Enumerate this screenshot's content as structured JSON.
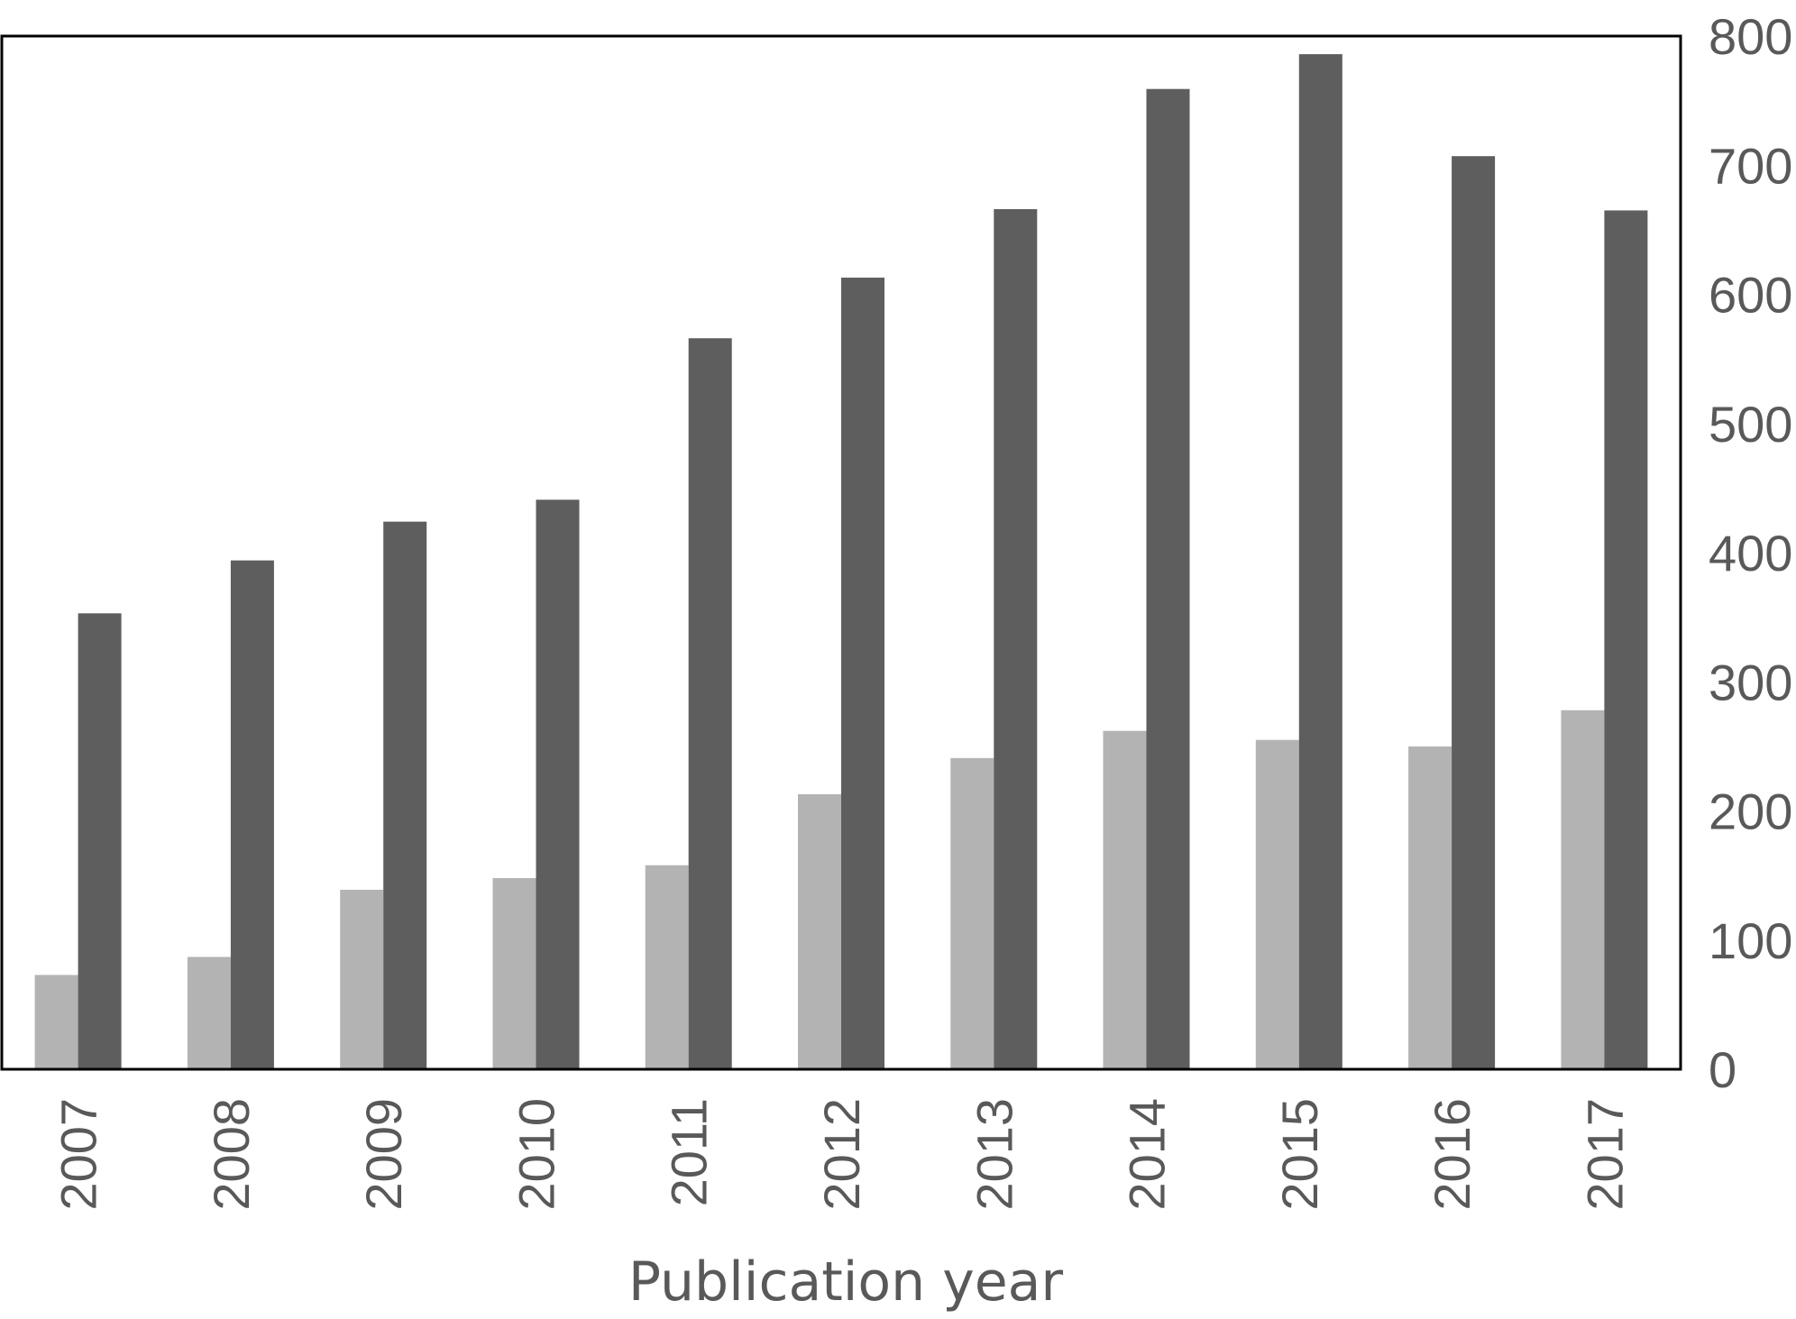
{
  "chart_data": {
    "type": "bar",
    "title": "",
    "xlabel": "Publication year",
    "ylabel": "",
    "categories": [
      "2007",
      "2008",
      "2009",
      "2010",
      "2011",
      "2012",
      "2013",
      "2014",
      "2015",
      "2016",
      "2017"
    ],
    "series": [
      {
        "color": "#b3b3b3",
        "values": [
          73,
          87,
          139,
          148,
          158,
          213,
          241,
          262,
          255,
          250,
          278
        ]
      },
      {
        "color": "#5e5e5e",
        "values": [
          353,
          394,
          424,
          441,
          566,
          613,
          666,
          759,
          786,
          707,
          665
        ]
      }
    ],
    "ylim": [
      0,
      800
    ],
    "yticks": [
      0,
      100,
      200,
      300,
      400,
      500,
      600,
      700,
      800
    ],
    "y_axis_side": "right",
    "grid": false,
    "legend": "none"
  }
}
